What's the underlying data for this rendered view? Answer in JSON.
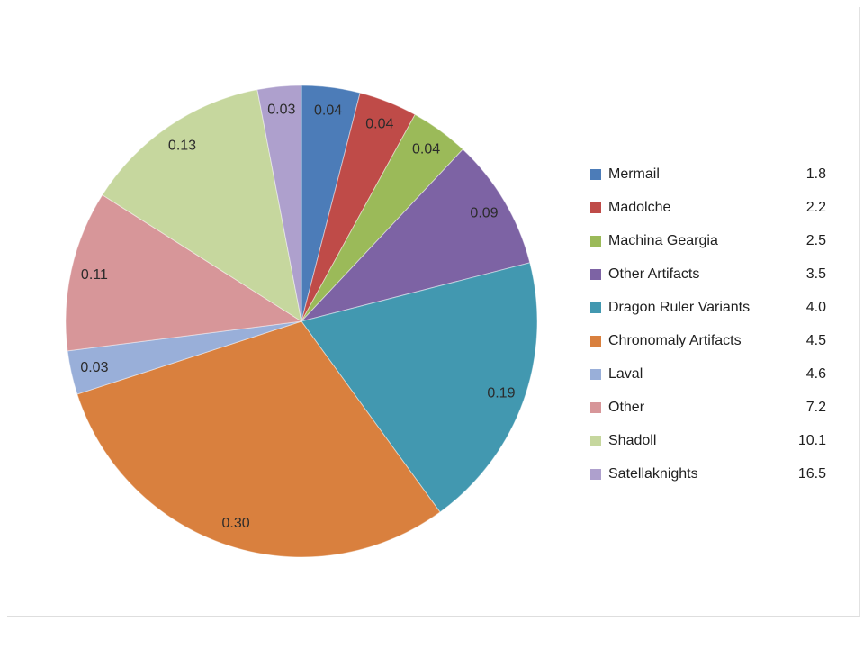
{
  "slide": {
    "background_color": "#ffffff",
    "border_color": "#e2e2e2"
  },
  "chart_data": {
    "type": "pie",
    "title": "",
    "legend_position": "right",
    "start_angle_deg": 0,
    "direction": "clockwise",
    "label_color": "#2b2b2b",
    "label_radius_fraction": 0.9,
    "slice_border_color": "#ffffff",
    "slices": [
      {
        "name": "Mermail",
        "proportion": 0.04,
        "slice_label": "0.04",
        "legend_value": "1.8",
        "color": "#4c7cb8"
      },
      {
        "name": "Madolche",
        "proportion": 0.04,
        "slice_label": "0.04",
        "legend_value": "2.2",
        "color": "#bf4b48"
      },
      {
        "name": "Machina Geargia",
        "proportion": 0.04,
        "slice_label": "0.04",
        "legend_value": "2.5",
        "color": "#9bba59"
      },
      {
        "name": "Other Artifacts",
        "proportion": 0.09,
        "slice_label": "0.09",
        "legend_value": "3.5",
        "color": "#7d63a4"
      },
      {
        "name": "Dragon Ruler Variants",
        "proportion": 0.19,
        "slice_label": "0.19",
        "legend_value": "4.0",
        "color": "#4298b0"
      },
      {
        "name": "Chronomaly Artifacts",
        "proportion": 0.3,
        "slice_label": "0.30",
        "legend_value": "4.5",
        "color": "#d9803e"
      },
      {
        "name": "Laval",
        "proportion": 0.03,
        "slice_label": "0.03",
        "legend_value": "4.6",
        "color": "#99afd9"
      },
      {
        "name": "Other",
        "proportion": 0.11,
        "slice_label": "0.11",
        "legend_value": "7.2",
        "color": "#d79699"
      },
      {
        "name": "Shadoll",
        "proportion": 0.13,
        "slice_label": "0.13",
        "legend_value": "10.1",
        "color": "#c6d79e"
      },
      {
        "name": "Satellaknights",
        "proportion": 0.03,
        "slice_label": "0.03",
        "legend_value": "16.5",
        "color": "#aea0cd"
      }
    ]
  },
  "legend": {
    "text_color": "#1f1f1f"
  }
}
